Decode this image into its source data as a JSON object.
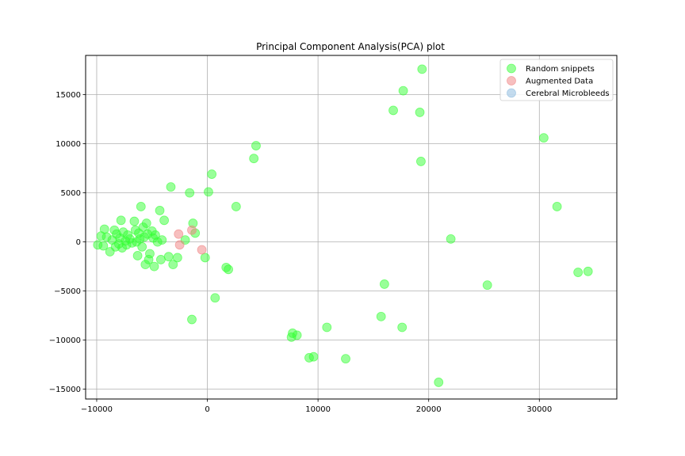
{
  "chart_data": {
    "type": "scatter",
    "title": "Principal Component Analysis(PCA) plot",
    "xlabel": "",
    "ylabel": "",
    "xlim": [
      -11000,
      37000
    ],
    "ylim": [
      -16000,
      19000
    ],
    "xticks": [
      -10000,
      0,
      10000,
      20000,
      30000
    ],
    "yticks": [
      -15000,
      -10000,
      -5000,
      0,
      5000,
      10000,
      15000
    ],
    "xtick_labels": [
      "−10000",
      "0",
      "10000",
      "20000",
      "30000"
    ],
    "ytick_labels": [
      "−15000",
      "−10000",
      "−5000",
      "0",
      "5000",
      "10000",
      "15000"
    ],
    "grid": true,
    "legend_position": "top-right",
    "series": [
      {
        "name": "Random snippets",
        "color": "#33ff33",
        "points": [
          [
            -9900,
            -300
          ],
          [
            -9600,
            600
          ],
          [
            -9300,
            1300
          ],
          [
            -9400,
            -400
          ],
          [
            -9100,
            500
          ],
          [
            -8800,
            -1000
          ],
          [
            -8600,
            200
          ],
          [
            -8400,
            1200
          ],
          [
            -8300,
            -500
          ],
          [
            -8200,
            800
          ],
          [
            -8000,
            -200
          ],
          [
            -7900,
            400
          ],
          [
            -7800,
            2200
          ],
          [
            -7700,
            -600
          ],
          [
            -7600,
            1000
          ],
          [
            -7400,
            100
          ],
          [
            -7300,
            -300
          ],
          [
            -7200,
            700
          ],
          [
            -7000,
            300
          ],
          [
            -6800,
            -100
          ],
          [
            -6600,
            2100
          ],
          [
            -6500,
            1200
          ],
          [
            -6400,
            0
          ],
          [
            -6300,
            -1400
          ],
          [
            -6200,
            900
          ],
          [
            -6100,
            300
          ],
          [
            -6000,
            3600
          ],
          [
            -5900,
            -500
          ],
          [
            -5800,
            1500
          ],
          [
            -5700,
            500
          ],
          [
            -5600,
            -2300
          ],
          [
            -5500,
            1900
          ],
          [
            -5400,
            800
          ],
          [
            -5300,
            -1800
          ],
          [
            -5200,
            -1200
          ],
          [
            -5000,
            1100
          ],
          [
            -4900,
            400
          ],
          [
            -4800,
            -2500
          ],
          [
            -4700,
            700
          ],
          [
            -4500,
            0
          ],
          [
            -4300,
            3200
          ],
          [
            -4200,
            -1800
          ],
          [
            -4100,
            200
          ],
          [
            -3900,
            2200
          ],
          [
            -3500,
            -1500
          ],
          [
            -3300,
            5600
          ],
          [
            -3100,
            -2300
          ],
          [
            -2700,
            -1600
          ],
          [
            -2000,
            200
          ],
          [
            -1600,
            5000
          ],
          [
            -1400,
            -7900
          ],
          [
            -1300,
            1900
          ],
          [
            -1100,
            900
          ],
          [
            -200,
            -1600
          ],
          [
            100,
            5100
          ],
          [
            400,
            6900
          ],
          [
            700,
            -5700
          ],
          [
            1700,
            -2600
          ],
          [
            1900,
            -2800
          ],
          [
            2600,
            3600
          ],
          [
            4200,
            8500
          ],
          [
            4400,
            9800
          ],
          [
            7600,
            -9700
          ],
          [
            7700,
            -9300
          ],
          [
            8100,
            -9500
          ],
          [
            9200,
            -11800
          ],
          [
            9600,
            -11700
          ],
          [
            10800,
            -8700
          ],
          [
            12500,
            -11900
          ],
          [
            15700,
            -7600
          ],
          [
            16000,
            -4300
          ],
          [
            16800,
            13400
          ],
          [
            17600,
            -8700
          ],
          [
            17700,
            15400
          ],
          [
            19200,
            13200
          ],
          [
            19300,
            8200
          ],
          [
            19400,
            17600
          ],
          [
            20900,
            -14300
          ],
          [
            22000,
            300
          ],
          [
            25300,
            -4400
          ],
          [
            30400,
            10600
          ],
          [
            31600,
            3600
          ],
          [
            33500,
            -3100
          ],
          [
            34400,
            -3000
          ]
        ]
      },
      {
        "name": "Augmented Data",
        "color": "#f08080",
        "points": [
          [
            -2600,
            800
          ],
          [
            -2500,
            -300
          ],
          [
            -1400,
            1200
          ],
          [
            -500,
            -800
          ]
        ]
      },
      {
        "name": "Cerebral Microbleeds",
        "color": "#87b8de",
        "points": []
      }
    ]
  }
}
